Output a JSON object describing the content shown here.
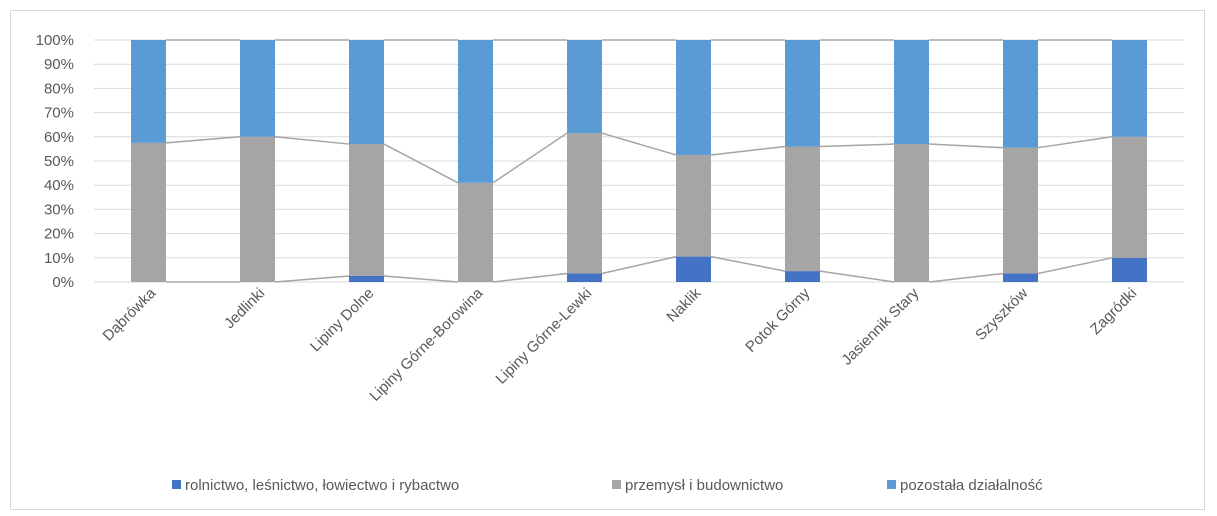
{
  "chart_data": {
    "type": "bar",
    "stacked": "percent",
    "categories": [
      "Dąbrówka",
      "Jedlinki",
      "Lipiny Dolne",
      "Lipiny Górne-Borowina",
      "Lipiny Górne-Lewki",
      "Naklik",
      "Potok Górny",
      "Jasiennik Stary",
      "Szyszków",
      "Zagródki"
    ],
    "series": [
      {
        "name": "rolnictwo, leśnictwo, łowiectwo i rybactwo",
        "color": "#4472c4",
        "values": [
          0,
          0,
          2.5,
          0,
          3.5,
          10.5,
          4.5,
          0,
          3.5,
          10
        ]
      },
      {
        "name": "przemysł i budownictwo",
        "color": "#a5a5a5",
        "values": [
          57.5,
          60,
          54.5,
          41,
          58,
          42,
          51.5,
          57,
          52,
          50
        ]
      },
      {
        "name": "pozostała działalność",
        "color": "#5b9bd5",
        "values": [
          42.5,
          40,
          43,
          59,
          38.5,
          47.5,
          44,
          43,
          44.5,
          40
        ]
      }
    ],
    "y_ticks": [
      "0%",
      "10%",
      "20%",
      "30%",
      "40%",
      "50%",
      "60%",
      "70%",
      "80%",
      "90%",
      "100%"
    ],
    "ylim": [
      0,
      100
    ],
    "series_lines": true,
    "grid": true,
    "legend": "bottom",
    "title": "",
    "xlabel": "",
    "ylabel": ""
  }
}
